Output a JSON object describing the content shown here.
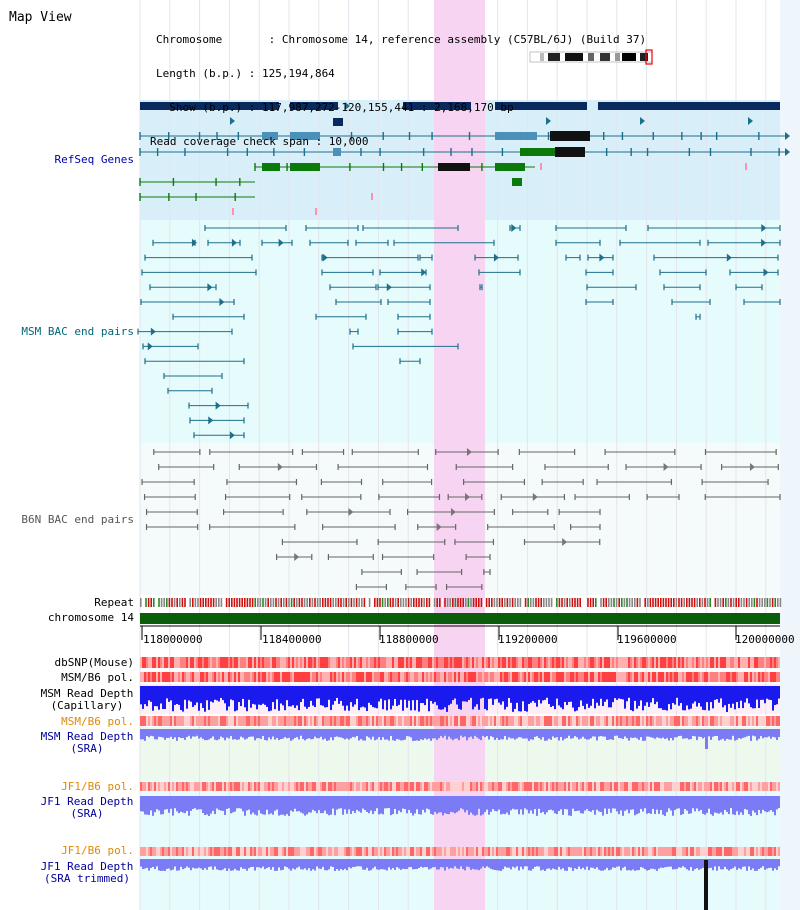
{
  "view_title": "Map View",
  "header": {
    "chromosome_line": "Chromosome       : Chromosome 14, reference assembly (C57BL/6J) (Build 37)",
    "length_line": "Length (b.p.) : 125,194,864",
    "show_line": "  Show (b.p.) : 117,987,272-120,155,441 : 2,168,170 bp",
    "coverage_line": "Read coverage check span : 10,000"
  },
  "tracks": {
    "refseq": "RefSeq Genes",
    "msm_bac": "MSM BAC end pairs",
    "b6n_bac": "B6N BAC end pairs",
    "repeat": "Repeat",
    "chromosome": "chromosome 14",
    "dbsnp": "dbSNP(Mouse)",
    "msm_b6_pol_1": "MSM/B6 pol.",
    "msm_read_depth_cap_1": "MSM Read Depth",
    "msm_read_depth_cap_2": "(Capillary)",
    "msm_b6_pol_2": "MSM/B6 pol.",
    "msm_read_depth_sra_1": "MSM Read Depth",
    "msm_read_depth_sra_2": "(SRA)",
    "jf1_b6_pol_1": "JF1/B6 pol.",
    "jf1_read_depth_sra_1": "JF1 Read Depth",
    "jf1_read_depth_sra_2": "(SRA)",
    "jf1_b6_pol_2": "JF1/B6 pol.",
    "jf1_read_depth_trim_1": "JF1 Read Depth",
    "jf1_read_depth_trim_2": "(SRA trimmed)"
  },
  "axis_ticks": [
    "118000000",
    "118400000",
    "118800000",
    "119200000",
    "119600000",
    "120000000"
  ],
  "colors": {
    "gene_dark": "#0a2a5e",
    "gene_teal": "#1e6f8c",
    "gene_green": "#0b7a0b",
    "refseq_bg": "#d8effa",
    "msm_bg": "#e6fbfb",
    "highlight": "#f7d4f1",
    "chromosome": "#0b5c0b",
    "snp_red": "#ff6060",
    "depth_blue": "#1a1aee",
    "depth_light": "#7b7bf5"
  }
}
